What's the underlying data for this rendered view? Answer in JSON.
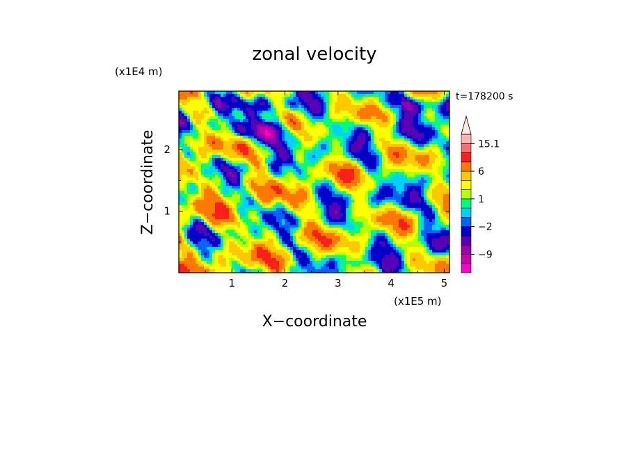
{
  "chart_data": {
    "type": "heatmap",
    "title": "zonal velocity",
    "xlabel": "X−coordinate",
    "ylabel": "Z−coordinate",
    "x_unit": "(x1E5 m)",
    "y_unit": "(x1E4 m)",
    "time_label": "t=178200 s",
    "xlim": [
      0.0,
      5.1
    ],
    "ylim": [
      0.0,
      2.95
    ],
    "x_ticks": [
      1,
      2,
      3,
      4,
      5
    ],
    "x_tick_labels": [
      "1",
      "2",
      "3",
      "4",
      "5"
    ],
    "y_ticks": [
      1,
      2
    ],
    "y_tick_labels": [
      "1",
      "2"
    ],
    "colorbar": {
      "levels": [
        -15,
        -12,
        -9,
        -6,
        -4,
        -2,
        -1,
        0,
        1,
        2,
        4,
        6,
        9,
        12,
        15.1
      ],
      "colors": [
        "#ff00cc",
        "#cc00aa",
        "#9900aa",
        "#5a00b4",
        "#0000c8",
        "#0064ff",
        "#00d2ff",
        "#00ff78",
        "#b4ff00",
        "#ffff00",
        "#ffc800",
        "#ff7800",
        "#ff1e1e",
        "#ff6e6e",
        "#ffb4b4"
      ],
      "overflow_color": "#ffe6e6",
      "labeled_levels": [
        15.1,
        6,
        1,
        -2,
        -9
      ],
      "labels": [
        "15.1",
        "6",
        "1",
        "−2",
        "−9"
      ]
    }
  }
}
